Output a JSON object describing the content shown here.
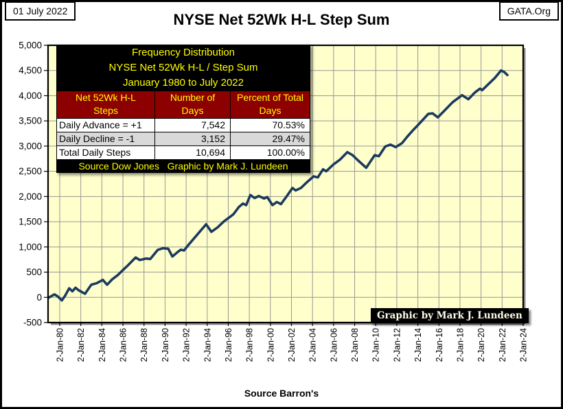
{
  "page": {
    "date_label": "01 July 2022",
    "org_label": "GATA.Org",
    "source_label": "Source Barron's"
  },
  "table": {
    "title_lines": [
      "Frequency Distribution",
      "NYSE Net 52Wk H-L / Step Sum",
      "January 1980 to July 2022"
    ],
    "columns": [
      [
        "Net 52Wk H-L",
        "Steps"
      ],
      [
        "Number of",
        "Days"
      ],
      [
        "Percent of Total",
        "Days"
      ]
    ],
    "rows": [
      {
        "label": "Daily Advance = +1",
        "days": "7,542",
        "pct": "70.53%"
      },
      {
        "label": "Daily Decline = -1",
        "days": "3,152",
        "pct": "29.47%"
      },
      {
        "label": "Total Daily Steps",
        "days": "10,694",
        "pct": "100.00%"
      }
    ],
    "footer": "Source Dow Jones   Graphic by Mark J. Lundeen"
  },
  "badge": "Graphic by Mark J. Lundeen",
  "colors": {
    "plot_bg": "#ffffcc",
    "grid": "#969696",
    "line": "#1b3a5e",
    "table_header_bg": "#8d0000",
    "table_accent_text": "#ffff00",
    "border": "#000000"
  },
  "chart_data": {
    "type": "line",
    "title": "NYSE Net 52Wk H-L Step Sum",
    "xlabel": "",
    "ylabel": "",
    "ylim": [
      -500,
      5000
    ],
    "ytick_step": 500,
    "ytick_labels": [
      "5,000",
      "4,500",
      "4,000",
      "3,500",
      "3,000",
      "2,500",
      "2,000",
      "1,500",
      "1,000",
      "500",
      "0",
      "-500"
    ],
    "xtick_labels": [
      "2-Jan-80",
      "2-Jan-82",
      "2-Jan-84",
      "2-Jan-86",
      "2-Jan-88",
      "2-Jan-90",
      "2-Jan-92",
      "2-Jan-94",
      "2-Jan-96",
      "2-Jan-98",
      "2-Jan-00",
      "2-Jan-02",
      "2-Jan-04",
      "2-Jan-06",
      "2-Jan-08",
      "2-Jan-10",
      "2-Jan-12",
      "2-Jan-14",
      "2-Jan-16",
      "2-Jan-18",
      "2-Jan-20",
      "2-Jan-22",
      "2-Jan-24"
    ],
    "grid": true,
    "legend": "none",
    "series": [
      {
        "name": "NYSE Net 52Wk H-L Step Sum",
        "color": "#1b3a5e",
        "points": [
          [
            1979.0,
            0
          ],
          [
            1979.5,
            60
          ],
          [
            1979.8,
            20
          ],
          [
            1980.2,
            -60
          ],
          [
            1980.5,
            30
          ],
          [
            1980.9,
            180
          ],
          [
            1981.2,
            120
          ],
          [
            1981.5,
            190
          ],
          [
            1981.8,
            140
          ],
          [
            1982.4,
            70
          ],
          [
            1983.0,
            250
          ],
          [
            1983.5,
            280
          ],
          [
            1984.1,
            345
          ],
          [
            1984.5,
            250
          ],
          [
            1985.0,
            360
          ],
          [
            1985.5,
            440
          ],
          [
            1986.0,
            540
          ],
          [
            1986.5,
            640
          ],
          [
            1987.2,
            790
          ],
          [
            1987.6,
            740
          ],
          [
            1988.2,
            770
          ],
          [
            1988.6,
            760
          ],
          [
            1989.3,
            940
          ],
          [
            1989.8,
            975
          ],
          [
            1990.3,
            965
          ],
          [
            1990.7,
            810
          ],
          [
            1991.2,
            900
          ],
          [
            1991.5,
            945
          ],
          [
            1991.8,
            930
          ],
          [
            1992.3,
            1060
          ],
          [
            1993.0,
            1230
          ],
          [
            1993.9,
            1450
          ],
          [
            1994.4,
            1300
          ],
          [
            1995.0,
            1390
          ],
          [
            1995.6,
            1510
          ],
          [
            1996.2,
            1600
          ],
          [
            1996.5,
            1650
          ],
          [
            1997.0,
            1790
          ],
          [
            1997.4,
            1860
          ],
          [
            1997.7,
            1830
          ],
          [
            1998.1,
            2030
          ],
          [
            1998.5,
            1970
          ],
          [
            1998.9,
            2010
          ],
          [
            1999.4,
            1960
          ],
          [
            1999.7,
            1990
          ],
          [
            2000.2,
            1830
          ],
          [
            2000.6,
            1890
          ],
          [
            2001.0,
            1850
          ],
          [
            2001.5,
            1990
          ],
          [
            2002.1,
            2170
          ],
          [
            2002.4,
            2120
          ],
          [
            2002.9,
            2170
          ],
          [
            2003.5,
            2290
          ],
          [
            2004.1,
            2400
          ],
          [
            2004.5,
            2380
          ],
          [
            2005.0,
            2540
          ],
          [
            2005.3,
            2500
          ],
          [
            2006.0,
            2640
          ],
          [
            2006.6,
            2730
          ],
          [
            2007.3,
            2880
          ],
          [
            2007.8,
            2820
          ],
          [
            2008.3,
            2720
          ],
          [
            2009.1,
            2570
          ],
          [
            2009.9,
            2820
          ],
          [
            2010.3,
            2800
          ],
          [
            2010.9,
            2990
          ],
          [
            2011.4,
            3030
          ],
          [
            2011.9,
            2980
          ],
          [
            2012.5,
            3060
          ],
          [
            2013.0,
            3190
          ],
          [
            2013.6,
            3330
          ],
          [
            2014.2,
            3460
          ],
          [
            2015.0,
            3640
          ],
          [
            2015.4,
            3650
          ],
          [
            2015.9,
            3570
          ],
          [
            2016.6,
            3720
          ],
          [
            2017.3,
            3870
          ],
          [
            2018.2,
            4010
          ],
          [
            2018.8,
            3930
          ],
          [
            2019.4,
            4060
          ],
          [
            2019.9,
            4140
          ],
          [
            2020.1,
            4110
          ],
          [
            2020.7,
            4230
          ],
          [
            2021.3,
            4350
          ],
          [
            2021.9,
            4500
          ],
          [
            2022.2,
            4470
          ],
          [
            2022.5,
            4410
          ]
        ]
      }
    ]
  }
}
